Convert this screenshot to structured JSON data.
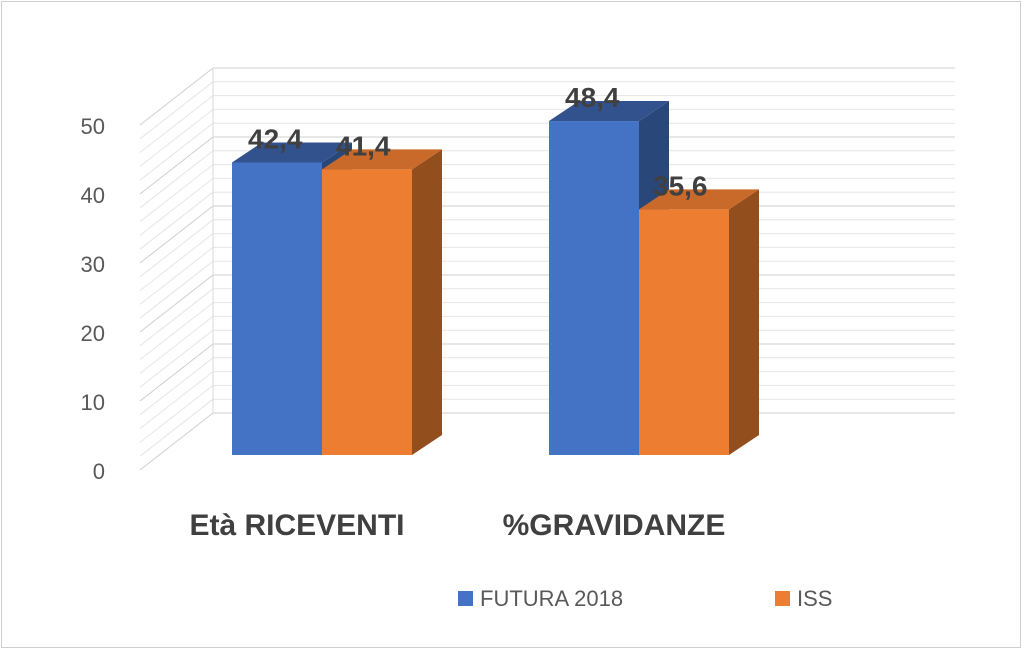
{
  "chart_data": {
    "type": "bar",
    "title": "",
    "xlabel": "",
    "ylabel": "",
    "categories": [
      "Età RICEVENTI",
      "%GRAVIDANZE"
    ],
    "series": [
      {
        "name": "FUTURA 2018",
        "values": [
          42.4,
          48.4
        ],
        "value_labels": [
          "42,4",
          "48,4"
        ]
      },
      {
        "name": "ISS",
        "values": [
          41.4,
          35.6
        ],
        "value_labels": [
          "41,4",
          "35,6"
        ]
      }
    ],
    "ylim": [
      0,
      50
    ],
    "yticks": [
      0,
      10,
      20,
      30,
      40,
      50
    ],
    "grid": true,
    "three_d": true,
    "legend_position": "bottom"
  },
  "colors": {
    "FUTURA 2018": "#4472c4",
    "ISS": "#ed7d31",
    "grid": "#d9d9d9"
  }
}
